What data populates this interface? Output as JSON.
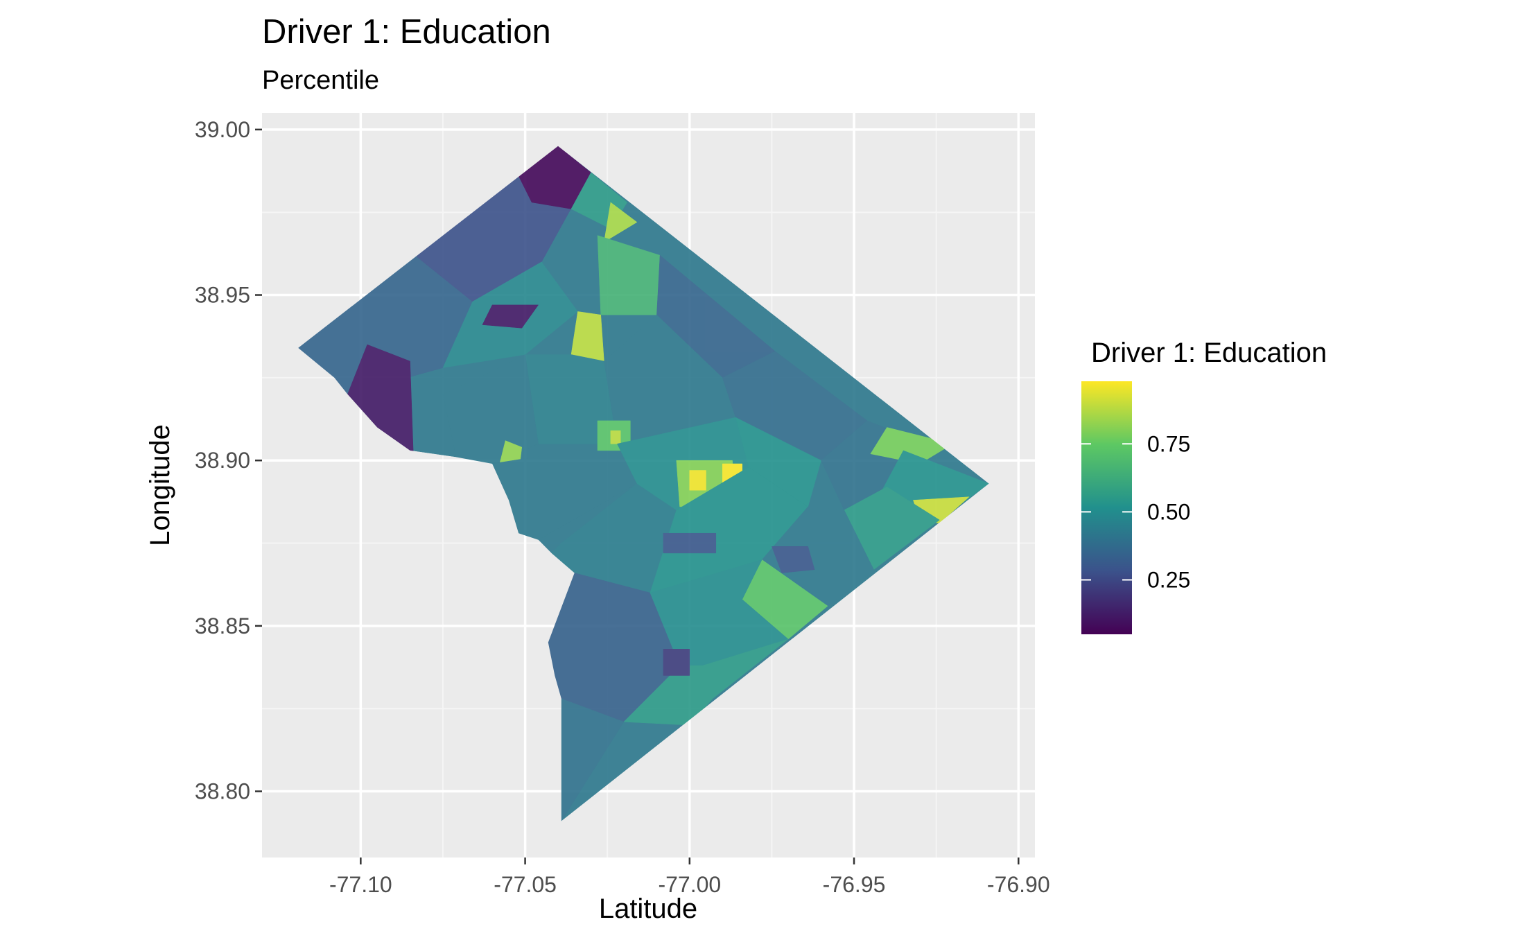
{
  "chart_data": {
    "type": "choropleth",
    "title": "Driver 1: Education",
    "subtitle": "Percentile",
    "xlabel": "Latitude",
    "ylabel": "Longitude",
    "xlim": [
      -77.13,
      -76.895
    ],
    "ylim": [
      38.78,
      39.005
    ],
    "x_ticks": [
      -77.1,
      -77.05,
      -77.0,
      -76.95,
      -76.9
    ],
    "x_tick_labels": [
      "-77.10",
      "-77.05",
      "-77.00",
      "-76.95",
      "-76.90"
    ],
    "y_ticks": [
      38.8,
      38.85,
      38.9,
      38.95,
      39.0
    ],
    "y_tick_labels": [
      "38.80",
      "38.85",
      "38.90",
      "38.95",
      "39.00"
    ],
    "grid": true,
    "legend": {
      "title": "Driver 1: Education",
      "position": "right",
      "colormap": "viridis",
      "range": [
        0.05,
        0.98
      ],
      "breaks": [
        0.25,
        0.5,
        0.75
      ],
      "labels": [
        "0.25",
        "0.50",
        "0.75"
      ]
    },
    "outline": [
      [
        -77.04,
        38.995
      ],
      [
        -76.909,
        38.893
      ],
      [
        -77.039,
        38.791
      ],
      [
        -77.039,
        38.828
      ],
      [
        -77.041,
        38.835
      ],
      [
        -77.043,
        38.845
      ],
      [
        -77.035,
        38.866
      ],
      [
        -77.042,
        38.872
      ],
      [
        -77.046,
        38.876
      ],
      [
        -77.052,
        38.878
      ],
      [
        -77.055,
        38.888
      ],
      [
        -77.06,
        38.899
      ],
      [
        -77.071,
        38.901
      ],
      [
        -77.085,
        38.903
      ],
      [
        -77.095,
        38.91
      ],
      [
        -77.104,
        38.92
      ],
      [
        -77.108,
        38.925
      ],
      [
        -77.119,
        38.934
      ]
    ],
    "regions": [
      {
        "polygon": [
          [
            -77.119,
            38.934
          ],
          [
            -77.086,
            38.964
          ],
          [
            -77.066,
            38.948
          ],
          [
            -77.075,
            38.928
          ],
          [
            -77.104,
            38.92
          ],
          [
            -77.108,
            38.925
          ]
        ],
        "value": 0.35
      },
      {
        "polygon": [
          [
            -77.086,
            38.964
          ],
          [
            -77.04,
            38.995
          ],
          [
            -77.03,
            38.987
          ],
          [
            -77.045,
            38.96
          ],
          [
            -77.066,
            38.948
          ]
        ],
        "value": 0.28
      },
      {
        "polygon": [
          [
            -77.04,
            38.995
          ],
          [
            -77.03,
            38.987
          ],
          [
            -77.036,
            38.976
          ],
          [
            -77.048,
            38.978
          ],
          [
            -77.052,
            38.986
          ]
        ],
        "value": 0.07
      },
      {
        "polygon": [
          [
            -77.03,
            38.987
          ],
          [
            -77.019,
            38.978
          ],
          [
            -77.024,
            38.97
          ],
          [
            -77.036,
            38.976
          ]
        ],
        "value": 0.55
      },
      {
        "polygon": [
          [
            -77.024,
            38.978
          ],
          [
            -77.016,
            38.972
          ],
          [
            -77.026,
            38.966
          ]
        ],
        "value": 0.85
      },
      {
        "polygon": [
          [
            -77.028,
            38.968
          ],
          [
            -77.009,
            38.962
          ],
          [
            -77.01,
            38.944
          ],
          [
            -77.027,
            38.944
          ]
        ],
        "value": 0.65
      },
      {
        "polygon": [
          [
            -77.009,
            38.962
          ],
          [
            -76.974,
            38.933
          ],
          [
            -76.99,
            38.925
          ],
          [
            -77.01,
            38.944
          ]
        ],
        "value": 0.35
      },
      {
        "polygon": [
          [
            -77.066,
            38.948
          ],
          [
            -77.045,
            38.96
          ],
          [
            -77.034,
            38.945
          ],
          [
            -77.05,
            38.932
          ],
          [
            -77.075,
            38.928
          ]
        ],
        "value": 0.48
      },
      {
        "polygon": [
          [
            -77.06,
            38.947
          ],
          [
            -77.046,
            38.947
          ],
          [
            -77.051,
            38.94
          ],
          [
            -77.063,
            38.941
          ]
        ],
        "value": 0.12
      },
      {
        "polygon": [
          [
            -77.098,
            38.935
          ],
          [
            -77.085,
            38.93
          ],
          [
            -77.084,
            38.902
          ],
          [
            -77.095,
            38.91
          ],
          [
            -77.104,
            38.92
          ]
        ],
        "value": 0.12
      },
      {
        "polygon": [
          [
            -77.034,
            38.945
          ],
          [
            -77.027,
            38.944
          ],
          [
            -77.026,
            38.93
          ],
          [
            -77.036,
            38.932
          ]
        ],
        "value": 0.88
      },
      {
        "polygon": [
          [
            -77.036,
            38.932
          ],
          [
            -77.026,
            38.93
          ],
          [
            -77.022,
            38.905
          ],
          [
            -77.046,
            38.905
          ],
          [
            -77.05,
            38.932
          ]
        ],
        "value": 0.45
      },
      {
        "polygon": [
          [
            -77.062,
            38.926
          ],
          [
            -77.05,
            38.932
          ],
          [
            -77.046,
            38.905
          ],
          [
            -77.06,
            38.899
          ],
          [
            -77.071,
            38.901
          ],
          [
            -77.075,
            38.92
          ]
        ],
        "value": 0.42
      },
      {
        "polygon": [
          [
            -77.056,
            38.906
          ],
          [
            -77.051,
            38.904
          ],
          [
            -77.052,
            38.896
          ],
          [
            -77.058,
            38.898
          ]
        ],
        "value": 0.82
      },
      {
        "polygon": [
          [
            -77.06,
            38.899
          ],
          [
            -77.022,
            38.905
          ],
          [
            -77.016,
            38.893
          ],
          [
            -77.046,
            38.876
          ],
          [
            -77.052,
            38.878
          ],
          [
            -77.055,
            38.888
          ]
        ],
        "value": 0.42
      },
      {
        "polygon": [
          [
            -77.039,
            38.875
          ],
          [
            -77.016,
            38.893
          ],
          [
            -77.004,
            38.885
          ],
          [
            -77.012,
            38.86
          ],
          [
            -77.035,
            38.866
          ],
          [
            -77.042,
            38.872
          ]
        ],
        "value": 0.44
      },
      {
        "polygon": [
          [
            -77.035,
            38.866
          ],
          [
            -77.012,
            38.86
          ],
          [
            -77.003,
            38.838
          ],
          [
            -77.02,
            38.821
          ],
          [
            -77.039,
            38.828
          ],
          [
            -77.041,
            38.835
          ],
          [
            -77.043,
            38.845
          ]
        ],
        "value": 0.34
      },
      {
        "polygon": [
          [
            -77.039,
            38.828
          ],
          [
            -77.02,
            38.821
          ],
          [
            -77.039,
            38.791
          ]
        ],
        "value": 0.4
      },
      {
        "polygon": [
          [
            -77.026,
            38.93
          ],
          [
            -77.01,
            38.944
          ],
          [
            -76.99,
            38.925
          ],
          [
            -76.986,
            38.913
          ],
          [
            -77.022,
            38.905
          ]
        ],
        "value": 0.42
      },
      {
        "polygon": [
          [
            -77.028,
            38.912
          ],
          [
            -77.018,
            38.912
          ],
          [
            -77.018,
            38.903
          ],
          [
            -77.028,
            38.903
          ]
        ],
        "value": 0.72
      },
      {
        "polygon": [
          [
            -77.024,
            38.909
          ],
          [
            -77.021,
            38.909
          ],
          [
            -77.021,
            38.905
          ],
          [
            -77.024,
            38.905
          ]
        ],
        "value": 0.88
      },
      {
        "polygon": [
          [
            -77.022,
            38.905
          ],
          [
            -76.986,
            38.913
          ],
          [
            -76.982,
            38.898
          ],
          [
            -77.004,
            38.885
          ],
          [
            -77.016,
            38.893
          ]
        ],
        "value": 0.5
      },
      {
        "polygon": [
          [
            -77.004,
            38.9
          ],
          [
            -76.987,
            38.9
          ],
          [
            -76.986,
            38.887
          ],
          [
            -77.003,
            38.886
          ]
        ],
        "value": 0.8
      },
      {
        "polygon": [
          [
            -77.0,
            38.897
          ],
          [
            -76.995,
            38.897
          ],
          [
            -76.995,
            38.891
          ],
          [
            -77.0,
            38.891
          ]
        ],
        "value": 0.96
      },
      {
        "polygon": [
          [
            -76.99,
            38.899
          ],
          [
            -76.984,
            38.899
          ],
          [
            -76.984,
            38.893
          ],
          [
            -76.99,
            38.893
          ]
        ],
        "value": 0.97
      },
      {
        "polygon": [
          [
            -76.996,
            38.887
          ],
          [
            -76.985,
            38.887
          ],
          [
            -76.985,
            38.883
          ],
          [
            -76.996,
            38.883
          ]
        ],
        "value": 0.96
      },
      {
        "polygon": [
          [
            -77.004,
            38.885
          ],
          [
            -76.982,
            38.898
          ],
          [
            -76.964,
            38.886
          ],
          [
            -76.978,
            38.87
          ],
          [
            -77.012,
            38.86
          ]
        ],
        "value": 0.52
      },
      {
        "polygon": [
          [
            -77.008,
            38.878
          ],
          [
            -76.992,
            38.878
          ],
          [
            -76.992,
            38.872
          ],
          [
            -77.008,
            38.872
          ]
        ],
        "value": 0.3
      },
      {
        "polygon": [
          [
            -76.99,
            38.925
          ],
          [
            -76.974,
            38.933
          ],
          [
            -76.946,
            38.912
          ],
          [
            -76.96,
            38.9
          ],
          [
            -76.986,
            38.913
          ]
        ],
        "value": 0.38
      },
      {
        "polygon": [
          [
            -76.986,
            38.913
          ],
          [
            -76.96,
            38.9
          ],
          [
            -76.964,
            38.886
          ],
          [
            -76.982,
            38.898
          ]
        ],
        "value": 0.52
      },
      {
        "polygon": [
          [
            -76.96,
            38.9
          ],
          [
            -76.946,
            38.912
          ],
          [
            -76.928,
            38.905
          ],
          [
            -76.94,
            38.892
          ],
          [
            -76.953,
            38.885
          ]
        ],
        "value": 0.4
      },
      {
        "polygon": [
          [
            -76.94,
            38.91
          ],
          [
            -76.92,
            38.905
          ],
          [
            -76.93,
            38.899
          ],
          [
            -76.945,
            38.902
          ]
        ],
        "value": 0.78
      },
      {
        "polygon": [
          [
            -76.935,
            38.903
          ],
          [
            -76.909,
            38.893
          ],
          [
            -76.924,
            38.882
          ],
          [
            -76.942,
            38.89
          ]
        ],
        "value": 0.52
      },
      {
        "polygon": [
          [
            -76.932,
            38.888
          ],
          [
            -76.915,
            38.889
          ],
          [
            -76.924,
            38.881
          ],
          [
            -76.93,
            38.882
          ]
        ],
        "value": 0.9
      },
      {
        "polygon": [
          [
            -76.953,
            38.885
          ],
          [
            -76.94,
            38.892
          ],
          [
            -76.924,
            38.882
          ],
          [
            -76.944,
            38.867
          ]
        ],
        "value": 0.55
      },
      {
        "polygon": [
          [
            -76.964,
            38.886
          ],
          [
            -76.953,
            38.885
          ],
          [
            -76.944,
            38.867
          ],
          [
            -76.958,
            38.856
          ],
          [
            -76.978,
            38.87
          ]
        ],
        "value": 0.42
      },
      {
        "polygon": [
          [
            -76.978,
            38.87
          ],
          [
            -76.958,
            38.856
          ],
          [
            -76.97,
            38.846
          ],
          [
            -76.984,
            38.858
          ]
        ],
        "value": 0.72
      },
      {
        "polygon": [
          [
            -76.975,
            38.874
          ],
          [
            -76.964,
            38.874
          ],
          [
            -76.962,
            38.867
          ],
          [
            -76.972,
            38.866
          ]
        ],
        "value": 0.3
      },
      {
        "polygon": [
          [
            -77.012,
            38.86
          ],
          [
            -76.978,
            38.87
          ],
          [
            -76.984,
            38.858
          ],
          [
            -76.97,
            38.846
          ],
          [
            -76.996,
            38.838
          ],
          [
            -77.003,
            38.838
          ]
        ],
        "value": 0.5
      },
      {
        "polygon": [
          [
            -77.003,
            38.838
          ],
          [
            -76.996,
            38.838
          ],
          [
            -76.97,
            38.846
          ],
          [
            -76.993,
            38.828
          ],
          [
            -77.0,
            38.82
          ],
          [
            -77.02,
            38.821
          ]
        ],
        "value": 0.55
      },
      {
        "polygon": [
          [
            -77.008,
            38.843
          ],
          [
            -77.0,
            38.843
          ],
          [
            -77.0,
            38.835
          ],
          [
            -77.008,
            38.835
          ]
        ],
        "value": 0.22
      }
    ]
  }
}
